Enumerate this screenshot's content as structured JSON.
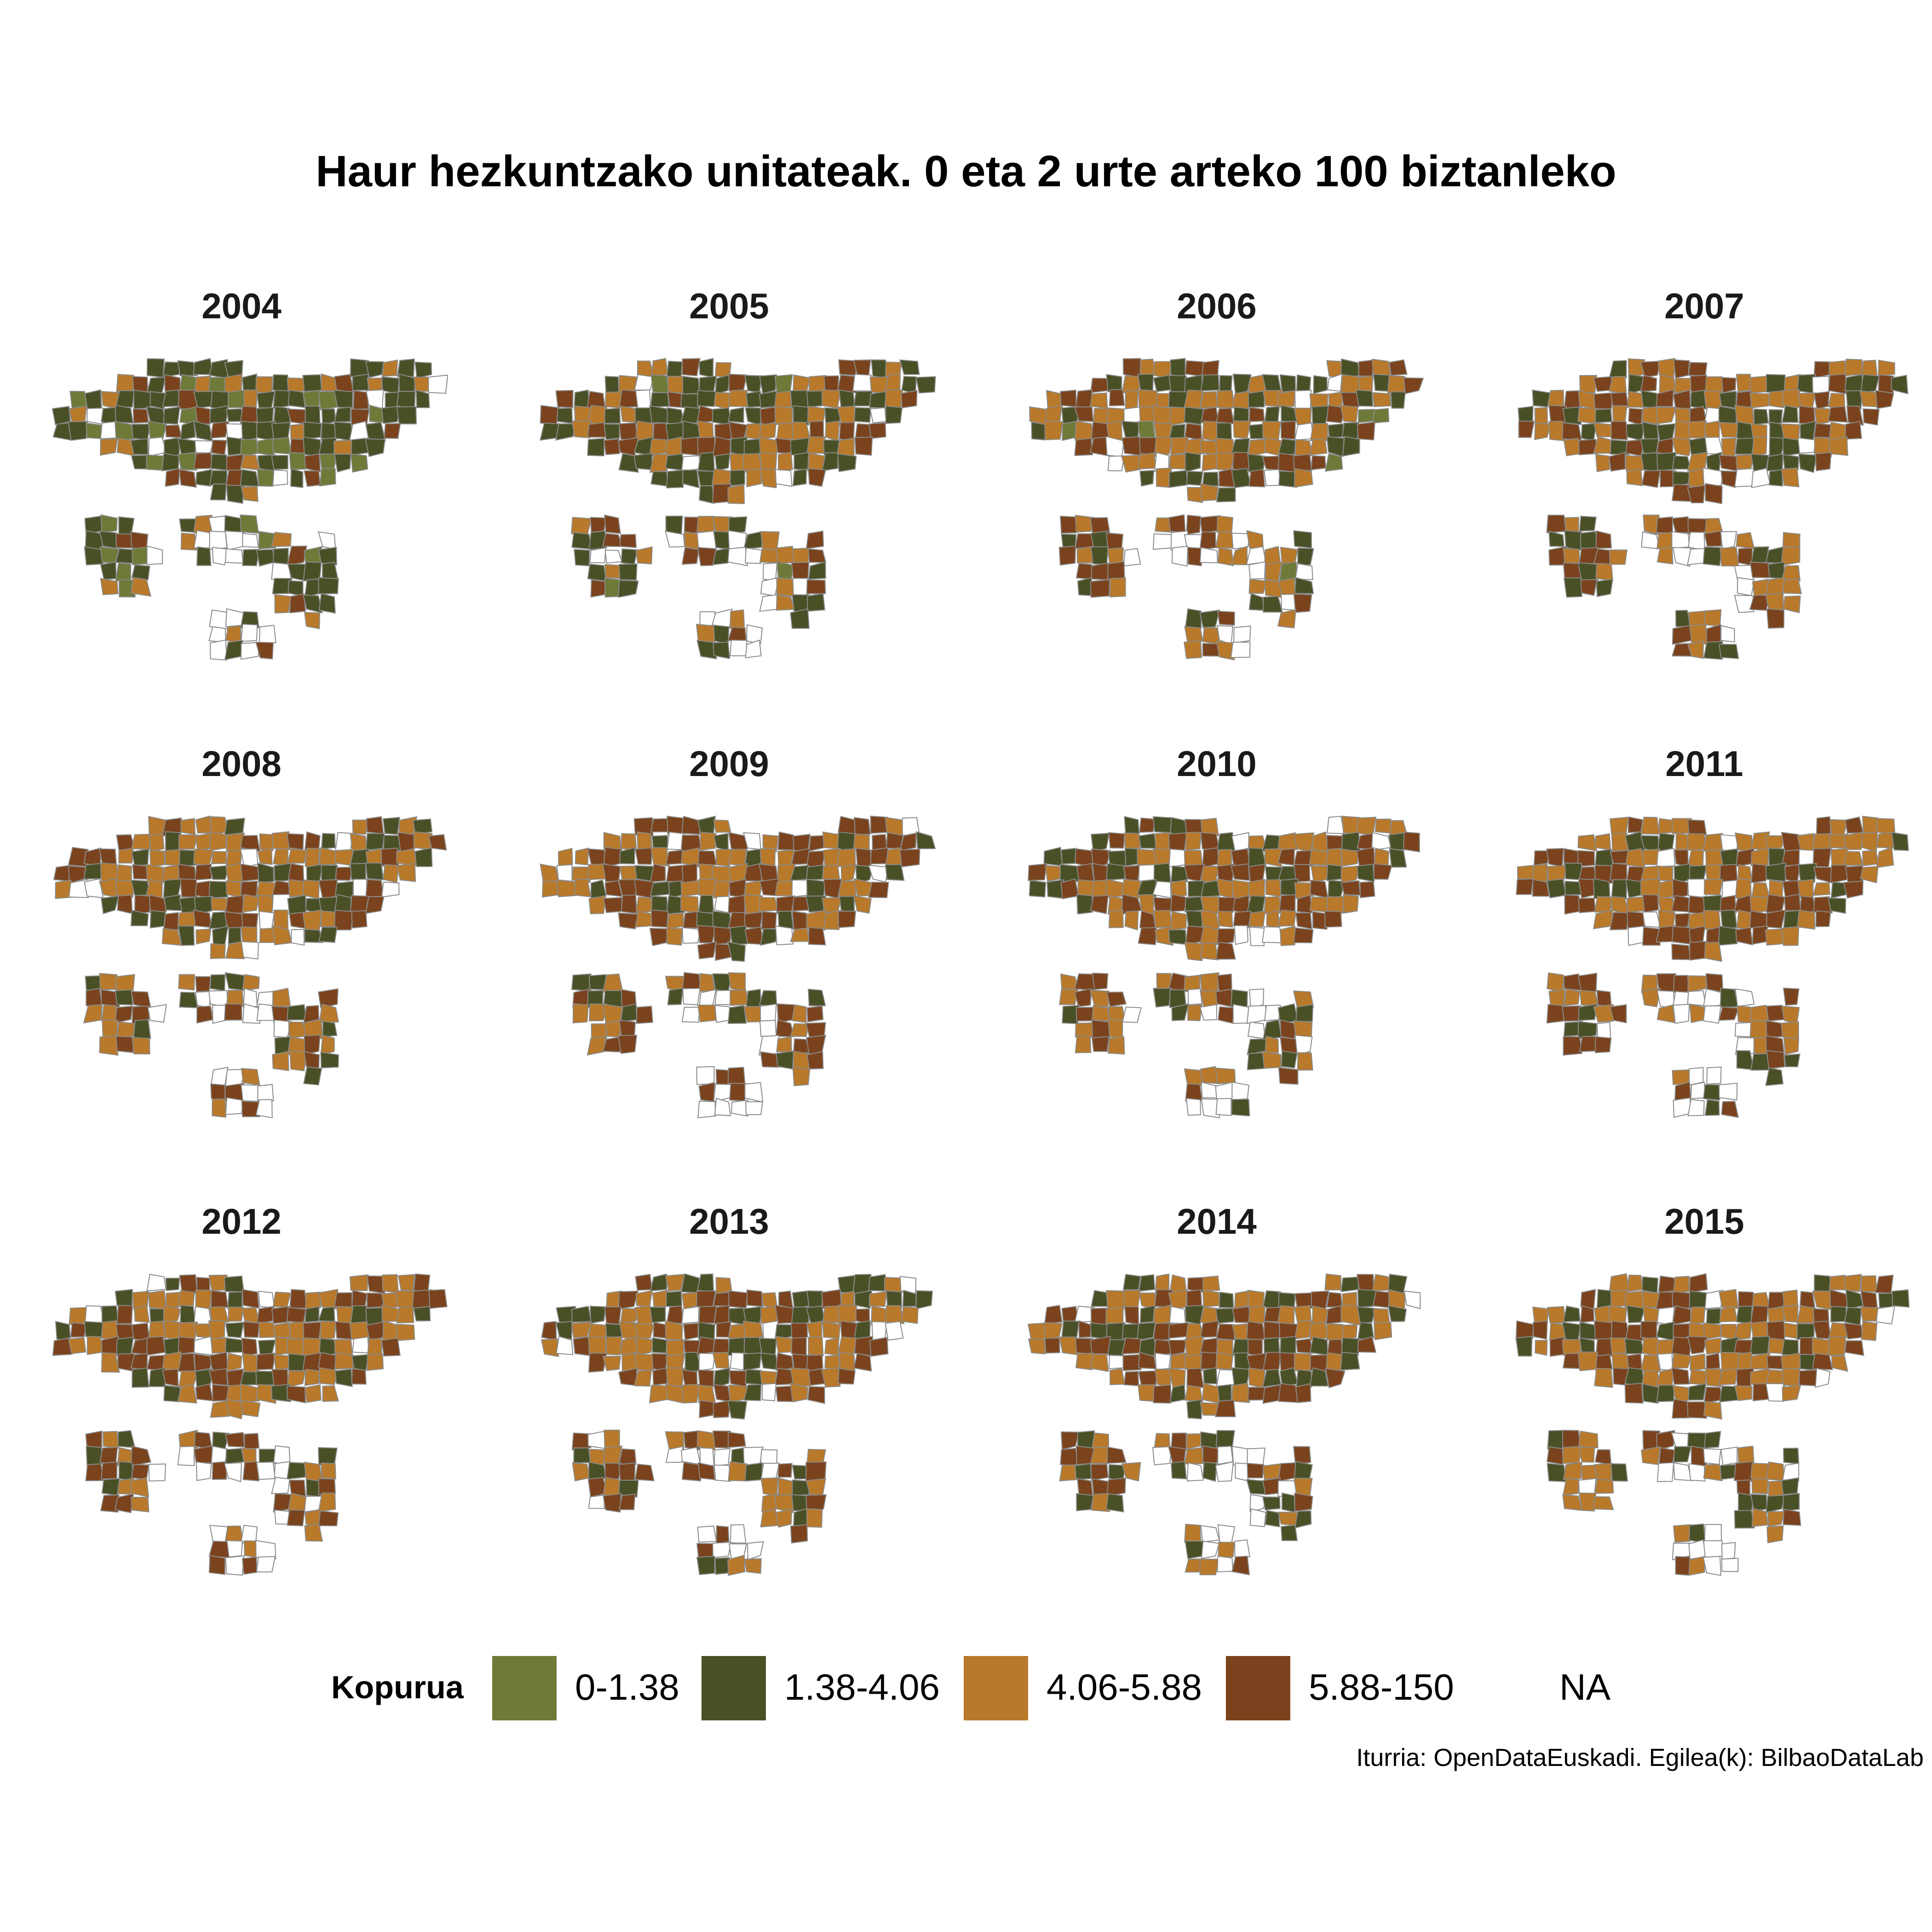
{
  "title": "Haur hezkuntzako unitateak. 0 eta 2 urte arteko 100 biztanleko",
  "caption": "Iturria: OpenDataEuskadi. Egilea(k): BilbaoDataLab",
  "legend": {
    "title": "Kopurua",
    "items": [
      {
        "label": "0-1.38",
        "color": "#6e7a38"
      },
      {
        "label": "1.38-4.06",
        "color": "#4a5026"
      },
      {
        "label": "4.06-5.88",
        "color": "#b8792a"
      },
      {
        "label": "5.88-150",
        "color": "#7a431d"
      },
      {
        "label": "NA",
        "color": "#ffffff"
      }
    ]
  },
  "panels": [
    {
      "year": "2004",
      "mix": [
        0.22,
        0.5,
        0.15,
        0.13
      ]
    },
    {
      "year": "2005",
      "mix": [
        0.02,
        0.42,
        0.3,
        0.26
      ]
    },
    {
      "year": "2006",
      "mix": [
        0.02,
        0.3,
        0.38,
        0.3
      ]
    },
    {
      "year": "2007",
      "mix": [
        0.0,
        0.3,
        0.36,
        0.34
      ]
    },
    {
      "year": "2008",
      "mix": [
        0.0,
        0.26,
        0.42,
        0.32
      ]
    },
    {
      "year": "2009",
      "mix": [
        0.0,
        0.26,
        0.42,
        0.32
      ]
    },
    {
      "year": "2010",
      "mix": [
        0.0,
        0.24,
        0.44,
        0.32
      ]
    },
    {
      "year": "2011",
      "mix": [
        0.0,
        0.24,
        0.42,
        0.34
      ]
    },
    {
      "year": "2012",
      "mix": [
        0.0,
        0.22,
        0.42,
        0.36
      ]
    },
    {
      "year": "2013",
      "mix": [
        0.0,
        0.24,
        0.44,
        0.32
      ]
    },
    {
      "year": "2014",
      "mix": [
        0.0,
        0.28,
        0.4,
        0.32
      ]
    },
    {
      "year": "2015",
      "mix": [
        0.0,
        0.24,
        0.4,
        0.36
      ]
    }
  ]
}
